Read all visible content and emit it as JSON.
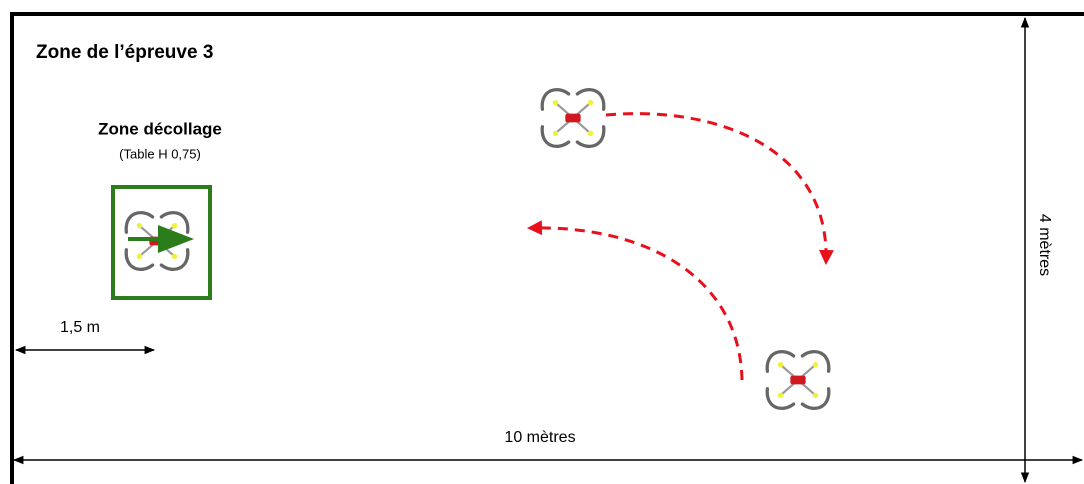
{
  "title": "Zone de l’épreuve 3",
  "takeoff": {
    "label": "Zone décollage",
    "note": "(Table H 0,75)"
  },
  "dimensions": {
    "offset": "1,5 m",
    "width": "10 mètres",
    "height": "4 mètres"
  }
}
